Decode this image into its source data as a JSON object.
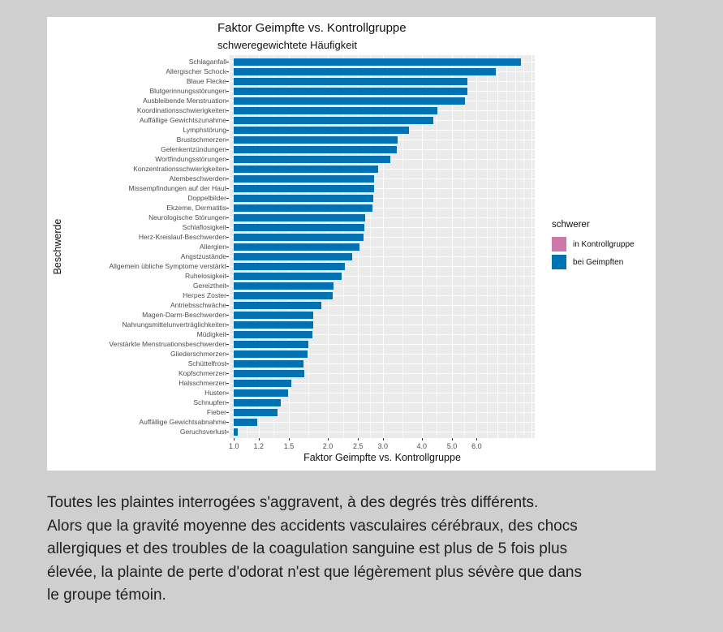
{
  "page": {
    "background": "#cfcfcf",
    "card_background": "#ffffff"
  },
  "chart_data": {
    "type": "bar",
    "orientation": "horizontal",
    "title": "Faktor Geimpfte vs. Kontrollgruppe",
    "subtitle": "schweregewichtete Häufigkeit",
    "xlabel": "Faktor Geimpfte vs. Kontrollgruppe",
    "ylabel": "Beschwerde",
    "x_scale": "log10",
    "xlim": [
      0.97,
      9.25
    ],
    "grid": true,
    "panel_background": "#ebebeb",
    "grid_color": "#ffffff",
    "bar_color": "#0072B2",
    "x_ticks": [
      1.0,
      1.2,
      1.5,
      2.0,
      2.5,
      3.0,
      4.0,
      5.0,
      6.0
    ],
    "x_tick_labels": [
      "1.0",
      "1.2",
      "1.5",
      "2.0",
      "2.5",
      "3.0",
      "4.0",
      "5.0",
      "6.0"
    ],
    "legend": {
      "title": "schwerer",
      "position": "right",
      "items": [
        {
          "label": "in Kontrollgruppe",
          "color": "#CC79A7"
        },
        {
          "label": "bei Geimpften",
          "color": "#0072B2"
        }
      ]
    },
    "categories": [
      "Schlaganfall",
      "Allergischer Schock",
      "Blaue Flecke",
      "Blutgerinnungsstörungen",
      "Ausbleibende Menstruation",
      "Koordinationsschwierigkeiten",
      "Auffällige Gewichtszunahme",
      "Lymphstörung",
      "Brustschmerzen",
      "Gelenkentzündungen",
      "Wortfindungsstörungen",
      "Konzentrationsschwierigkeiten",
      "Atembeschwerden",
      "Missempfindungen auf der Haut",
      "Doppelbilder",
      "Ekzeme, Dermatitis",
      "Neurologische Störungen",
      "Schlaflosigkeit",
      "Herz-Kreislauf-Beschwerden",
      "Allergien",
      "Angstzustände",
      "Allgemein übliche Symptome verstärkt",
      "Ruhelosigkeit",
      "Gereiztheit",
      "Herpes Zoster",
      "Antriebsschwäche",
      "Magen-Darm-Beschwerden",
      "Nahrungsmittelunverträglichkeiten",
      "Müdigkeit",
      "Verstärkte Menstruationsbeschwerden",
      "Gliederschmerzen",
      "Schüttelfrost",
      "Kopfschmerzen",
      "Halsschmerzen",
      "Husten",
      "Schnupfen",
      "Fieber",
      "Auffällige Gewichtsabnahme",
      "Geruchsverlust"
    ],
    "values": [
      8.3,
      6.9,
      5.62,
      5.6,
      5.5,
      4.5,
      4.35,
      3.64,
      3.35,
      3.33,
      3.17,
      2.9,
      2.82,
      2.81,
      2.79,
      2.78,
      2.63,
      2.62,
      2.61,
      2.53,
      2.4,
      2.27,
      2.21,
      2.08,
      2.07,
      1.91,
      1.8,
      1.8,
      1.78,
      1.73,
      1.72,
      1.67,
      1.68,
      1.53,
      1.49,
      1.41,
      1.38,
      1.19,
      1.03
    ]
  },
  "description": {
    "lines": [
      "Toutes les plaintes interrogées s'aggravent, à des degrés très différents.",
      "Alors que la gravité moyenne des accidents vasculaires cérébraux, des chocs",
      "allergiques et des troubles de la coagulation sanguine est plus de 5 fois plus",
      "élevée, la plainte de perte d'odorat n'est que légèrement plus sévère que dans",
      "le groupe témoin."
    ]
  }
}
